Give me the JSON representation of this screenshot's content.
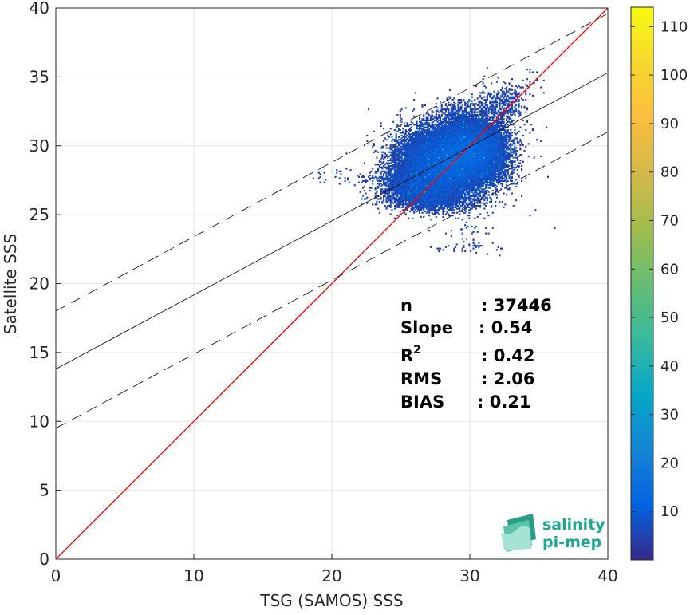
{
  "chart_data": {
    "type": "heatmap",
    "title": "",
    "xlabel": "TSG (SAMOS) SSS",
    "ylabel": "Satellite SSS",
    "xlim": [
      0,
      40
    ],
    "ylim": [
      0,
      40
    ],
    "xticks": [
      "0",
      "10",
      "20",
      "30",
      "40"
    ],
    "yticks": [
      "0",
      "5",
      "10",
      "15",
      "20",
      "25",
      "30",
      "35",
      "40"
    ],
    "grid": true,
    "colorbar": {
      "range": [
        0,
        114
      ],
      "ticks": [
        "10",
        "20",
        "30",
        "40",
        "50",
        "60",
        "70",
        "80",
        "90",
        "100",
        "110"
      ],
      "colormap": "parula"
    },
    "density_clusters": [
      {
        "x": 28.5,
        "y": 29.0,
        "sx": 2.4,
        "sy": 1.6,
        "weight": 0.34
      },
      {
        "x": 30.5,
        "y": 30.0,
        "sx": 1.4,
        "sy": 1.3,
        "weight": 0.18
      },
      {
        "x": 26.0,
        "y": 27.0,
        "sx": 1.8,
        "sy": 0.9,
        "weight": 0.14
      },
      {
        "x": 27.5,
        "y": 25.8,
        "sx": 2.0,
        "sy": 0.5,
        "weight": 0.08
      },
      {
        "x": 32.5,
        "y": 33.2,
        "sx": 1.1,
        "sy": 0.9,
        "weight": 0.08
      },
      {
        "x": 29.0,
        "y": 32.5,
        "sx": 1.2,
        "sy": 0.6,
        "weight": 0.05
      },
      {
        "x": 29.5,
        "y": 22.6,
        "sx": 1.8,
        "sy": 0.25,
        "weight": 0.04
      },
      {
        "x": 30.0,
        "y": 24.0,
        "sx": 0.8,
        "sy": 0.7,
        "weight": 0.03
      },
      {
        "x": 34.5,
        "y": 34.5,
        "sx": 0.4,
        "sy": 0.6,
        "weight": 0.03
      },
      {
        "x": 20.5,
        "y": 27.5,
        "sx": 1.2,
        "sy": 0.4,
        "weight": 0.03
      }
    ],
    "lines": [
      {
        "name": "identity",
        "color": "#ff0000",
        "style": "solid",
        "x": [
          0,
          40
        ],
        "y": [
          0,
          40
        ]
      },
      {
        "name": "fit",
        "color": "#000000",
        "style": "solid",
        "x": [
          0,
          40
        ],
        "y": [
          13.8,
          35.3
        ]
      },
      {
        "name": "upper",
        "color": "#000000",
        "style": "dashed",
        "x": [
          0,
          40
        ],
        "y": [
          18.0,
          39.6
        ]
      },
      {
        "name": "lower",
        "color": "#000000",
        "style": "dashed",
        "x": [
          0,
          40
        ],
        "y": [
          9.5,
          31.0
        ]
      }
    ]
  },
  "stats": [
    {
      "label": "n",
      "value": ": 37446"
    },
    {
      "label": "Slope",
      "value": ": 0.54"
    },
    {
      "label": "R",
      "value": ": 0.42"
    },
    {
      "label": "RMS",
      "value": ": 2.06"
    },
    {
      "label": "BIAS",
      "value": ": 0.21"
    }
  ],
  "r_superscript": "2",
  "logo": {
    "line1": "salinity",
    "line2": "pi-mep",
    "color": "#1fa88f"
  }
}
